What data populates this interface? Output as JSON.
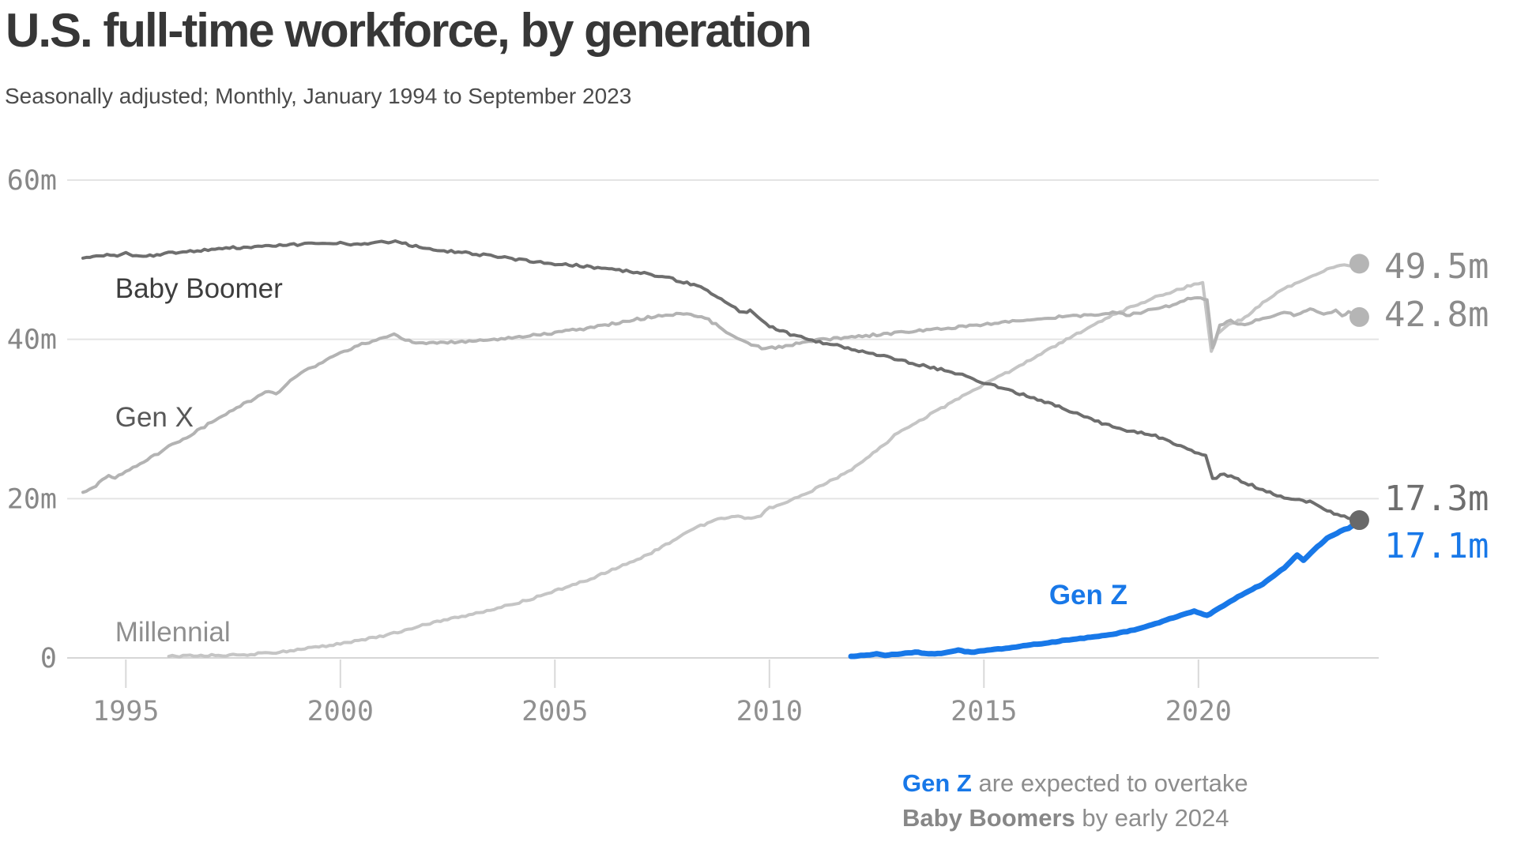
{
  "header": {
    "title": "U.S. full-time workforce, by generation",
    "subtitle": "Seasonally adjusted; Monthly, January 1994 to September 2023"
  },
  "annotation": {
    "line1_highlight": "Gen Z",
    "line1_rest": " are expected to overtake",
    "line2_bold": "Baby Boomers",
    "line2_rest": " by early 2024"
  },
  "colors": {
    "accent_blue": "#1878e8",
    "title": "#373737",
    "subtitle": "#4b4b4b",
    "annotation_gray": "#8d8d8d",
    "annotation_bold_gray": "#878787",
    "grid": "#e4e4e4",
    "baseline": "#d6d6d6",
    "tick": "#d9d9d9",
    "y_axis_label": "#878787",
    "x_axis_label": "#909090"
  },
  "chart_data": {
    "type": "line",
    "title": "U.S. full-time workforce, by generation",
    "subtitle": "Seasonally adjusted; Monthly, January 1994 to September 2023",
    "unit": "millions of full-time workers",
    "grid": true,
    "legend_position": "inline-labels",
    "x_axis": {
      "range": [
        1994,
        2023.75
      ],
      "ticks": [
        1995,
        2000,
        2005,
        2010,
        2015,
        2020
      ]
    },
    "y_axis": {
      "range": [
        0,
        60
      ],
      "ticks": [
        {
          "value": 60,
          "label": "60m"
        },
        {
          "value": 40,
          "label": "40m"
        },
        {
          "value": 20,
          "label": "20m"
        },
        {
          "value": 0,
          "label": "0"
        }
      ]
    },
    "series": [
      {
        "name": "Millennial",
        "color": "#c5c5c5",
        "line_width": 4,
        "label_color": "#8f8f8f",
        "label_bold": false,
        "label_anchor": [
          1994.75,
          2.08
        ],
        "end_label": {
          "text": "49.5m",
          "color": "#8b8b8b",
          "v": 47.7
        },
        "end_dot": {
          "show": true,
          "color": "#b5b5b5"
        },
        "points": [
          [
            1996,
            0.2
          ],
          [
            1996.5,
            0.25
          ],
          [
            1997,
            0.3
          ],
          [
            1997.5,
            0.35
          ],
          [
            1998,
            0.5
          ],
          [
            1998.5,
            0.7
          ],
          [
            1999,
            1.0
          ],
          [
            1999.5,
            1.4
          ],
          [
            2000,
            1.8
          ],
          [
            2000.5,
            2.3
          ],
          [
            2001,
            2.8
          ],
          [
            2001.5,
            3.5
          ],
          [
            2002,
            4.2
          ],
          [
            2002.5,
            4.8
          ],
          [
            2003,
            5.4
          ],
          [
            2003.5,
            6.0
          ],
          [
            2004,
            6.7
          ],
          [
            2004.5,
            7.5
          ],
          [
            2005,
            8.4
          ],
          [
            2005.5,
            9.3
          ],
          [
            2006,
            10.3
          ],
          [
            2006.5,
            11.4
          ],
          [
            2007,
            12.5
          ],
          [
            2007.5,
            13.9
          ],
          [
            2008,
            15.5
          ],
          [
            2008.4,
            16.6
          ],
          [
            2008.8,
            17.4
          ],
          [
            2009.2,
            17.8
          ],
          [
            2009.5,
            17.5
          ],
          [
            2009.8,
            17.9
          ],
          [
            2010,
            18.8
          ],
          [
            2010.5,
            19.8
          ],
          [
            2011,
            21.0
          ],
          [
            2011.5,
            22.4
          ],
          [
            2012,
            24.0
          ],
          [
            2012.5,
            26.0
          ],
          [
            2013,
            28.3
          ],
          [
            2013.5,
            29.8
          ],
          [
            2014,
            31.3
          ],
          [
            2014.5,
            32.8
          ],
          [
            2015,
            34.3
          ],
          [
            2015.5,
            35.7
          ],
          [
            2016,
            37.2
          ],
          [
            2016.5,
            38.7
          ],
          [
            2017,
            40.2
          ],
          [
            2017.5,
            41.6
          ],
          [
            2018,
            43.0
          ],
          [
            2018.5,
            44.2
          ],
          [
            2019,
            45.3
          ],
          [
            2019.5,
            46.2
          ],
          [
            2019.9,
            46.9
          ],
          [
            2020.1,
            47.1
          ],
          [
            2020.3,
            38.5
          ],
          [
            2020.45,
            40.6
          ],
          [
            2020.7,
            41.9
          ],
          [
            2021,
            42.4
          ],
          [
            2021.5,
            44.6
          ],
          [
            2022,
            46.4
          ],
          [
            2022.5,
            47.6
          ],
          [
            2023,
            48.8
          ],
          [
            2023.3,
            49.4
          ],
          [
            2023.5,
            49.2
          ],
          [
            2023.75,
            49.5
          ]
        ]
      },
      {
        "name": "Gen X",
        "color": "#b3b3b3",
        "line_width": 4,
        "label_color": "#585858",
        "label_bold": false,
        "label_anchor": [
          1994.75,
          29.06
        ],
        "end_label": {
          "text": "42.8m",
          "color": "#8b8b8b",
          "v": 41.66
        },
        "end_dot": {
          "show": true,
          "color": "#b5b5b5"
        },
        "points": [
          [
            1994,
            20.8
          ],
          [
            1994.3,
            21.6
          ],
          [
            1994.6,
            22.9
          ],
          [
            1994.75,
            22.5
          ],
          [
            1995,
            23.4
          ],
          [
            1995.5,
            24.9
          ],
          [
            1996,
            26.5
          ],
          [
            1996.5,
            28.0
          ],
          [
            1997,
            29.6
          ],
          [
            1997.5,
            31.2
          ],
          [
            1998,
            32.6
          ],
          [
            1998.25,
            33.4
          ],
          [
            1998.5,
            33.1
          ],
          [
            1999,
            35.5
          ],
          [
            1999.5,
            36.9
          ],
          [
            2000,
            38.3
          ],
          [
            2000.5,
            39.4
          ],
          [
            2001,
            40.2
          ],
          [
            2001.25,
            40.6
          ],
          [
            2001.6,
            39.8
          ],
          [
            2002,
            39.5
          ],
          [
            2002.5,
            39.6
          ],
          [
            2003,
            39.8
          ],
          [
            2003.5,
            40.0
          ],
          [
            2004,
            40.2
          ],
          [
            2004.5,
            40.5
          ],
          [
            2005,
            40.8
          ],
          [
            2005.5,
            41.2
          ],
          [
            2006,
            41.6
          ],
          [
            2006.5,
            42.1
          ],
          [
            2007,
            42.6
          ],
          [
            2007.5,
            43.0
          ],
          [
            2008,
            43.2
          ],
          [
            2008.5,
            42.7
          ],
          [
            2009,
            41.0
          ],
          [
            2009.5,
            39.5
          ],
          [
            2009.9,
            38.8
          ],
          [
            2010.3,
            39.1
          ],
          [
            2010.7,
            39.5
          ],
          [
            2011,
            39.8
          ],
          [
            2011.5,
            40.1
          ],
          [
            2012,
            40.3
          ],
          [
            2012.5,
            40.6
          ],
          [
            2013,
            40.8
          ],
          [
            2013.5,
            41.1
          ],
          [
            2014,
            41.3
          ],
          [
            2014.5,
            41.6
          ],
          [
            2015,
            41.9
          ],
          [
            2015.5,
            42.2
          ],
          [
            2016,
            42.4
          ],
          [
            2016.5,
            42.7
          ],
          [
            2017,
            42.9
          ],
          [
            2017.5,
            43.1
          ],
          [
            2018,
            43.3
          ],
          [
            2018.4,
            43.1
          ],
          [
            2019,
            43.8
          ],
          [
            2019.4,
            44.3
          ],
          [
            2019.75,
            45.0
          ],
          [
            2020.05,
            45.3
          ],
          [
            2020.2,
            44.9
          ],
          [
            2020.33,
            38.9
          ],
          [
            2020.5,
            41.7
          ],
          [
            2020.75,
            42.3
          ],
          [
            2021,
            41.8
          ],
          [
            2021.5,
            42.6
          ],
          [
            2022,
            43.3
          ],
          [
            2022.3,
            43.0
          ],
          [
            2022.6,
            43.7
          ],
          [
            2023,
            43.2
          ],
          [
            2023.2,
            43.6
          ],
          [
            2023.35,
            42.9
          ],
          [
            2023.5,
            43.4
          ],
          [
            2023.75,
            42.8
          ]
        ]
      },
      {
        "name": "Baby Boomer",
        "color": "#6e6e6e",
        "line_width": 4,
        "label_color": "#3d3d3d",
        "label_bold": false,
        "label_anchor": [
          1994.75,
          45.2
        ],
        "end_label": {
          "text": "17.3m",
          "color": "#6e6e6e",
          "v": 18.55
        },
        "end_dot": {
          "show": true,
          "color": "#696969"
        },
        "points": [
          [
            1994,
            50.2
          ],
          [
            1994.4,
            50.6
          ],
          [
            1994.8,
            50.4
          ],
          [
            1995,
            50.8
          ],
          [
            1995.4,
            50.3
          ],
          [
            1995.8,
            50.7
          ],
          [
            1996,
            50.9
          ],
          [
            1996.5,
            51.0
          ],
          [
            1997,
            51.3
          ],
          [
            1997.5,
            51.5
          ],
          [
            1998,
            51.6
          ],
          [
            1998.5,
            51.8
          ],
          [
            1999,
            51.9
          ],
          [
            1999.5,
            52.0
          ],
          [
            2000,
            52.1
          ],
          [
            2000.4,
            51.9
          ],
          [
            2000.8,
            52.1
          ],
          [
            2001.2,
            52.3
          ],
          [
            2001.6,
            51.9
          ],
          [
            2002,
            51.4
          ],
          [
            2002.5,
            51.1
          ],
          [
            2003,
            50.8
          ],
          [
            2003.5,
            50.5
          ],
          [
            2004,
            50.1
          ],
          [
            2004.5,
            49.8
          ],
          [
            2005,
            49.5
          ],
          [
            2005.5,
            49.3
          ],
          [
            2006,
            49.0
          ],
          [
            2006.5,
            48.7
          ],
          [
            2007,
            48.4
          ],
          [
            2007.5,
            47.9
          ],
          [
            2008,
            47.2
          ],
          [
            2008.4,
            46.6
          ],
          [
            2008.8,
            45.4
          ],
          [
            2009.2,
            43.9
          ],
          [
            2009.4,
            43.3
          ],
          [
            2009.55,
            43.6
          ],
          [
            2010,
            41.7
          ],
          [
            2010.4,
            40.8
          ],
          [
            2011,
            39.8
          ],
          [
            2011.5,
            39.3
          ],
          [
            2012,
            38.7
          ],
          [
            2012.5,
            38.1
          ],
          [
            2013,
            37.4
          ],
          [
            2013.5,
            36.8
          ],
          [
            2014,
            36.2
          ],
          [
            2014.5,
            35.5
          ],
          [
            2015,
            34.6
          ],
          [
            2015.5,
            33.8
          ],
          [
            2016,
            32.9
          ],
          [
            2016.5,
            32.0
          ],
          [
            2017,
            31.0
          ],
          [
            2017.5,
            30.0
          ],
          [
            2018,
            29.0
          ],
          [
            2018.5,
            28.4
          ],
          [
            2019,
            27.9
          ],
          [
            2019.5,
            26.8
          ],
          [
            2020,
            25.7
          ],
          [
            2020.17,
            25.3
          ],
          [
            2020.33,
            22.5
          ],
          [
            2020.6,
            23.1
          ],
          [
            2021,
            22.2
          ],
          [
            2021.5,
            21.1
          ],
          [
            2022,
            20.1
          ],
          [
            2022.6,
            19.6
          ],
          [
            2023,
            18.4
          ],
          [
            2023.4,
            17.8
          ],
          [
            2023.75,
            17.3
          ]
        ]
      },
      {
        "name": "Gen Z",
        "color": "#1878e8",
        "line_width": 7,
        "label_color": "#1878e8",
        "label_bold": true,
        "label_anchor": [
          2016.52,
          6.74
        ],
        "end_label": {
          "text": "17.1m",
          "color": "#1878e8",
          "v": 12.6
        },
        "end_dot": {
          "show": false,
          "color": "#1878e8"
        },
        "points": [
          [
            2011.9,
            0.2
          ],
          [
            2012.2,
            0.3
          ],
          [
            2012.5,
            0.55
          ],
          [
            2012.7,
            0.35
          ],
          [
            2013,
            0.45
          ],
          [
            2013.4,
            0.75
          ],
          [
            2013.7,
            0.5
          ],
          [
            2014,
            0.6
          ],
          [
            2014.4,
            0.95
          ],
          [
            2014.7,
            0.7
          ],
          [
            2015,
            0.9
          ],
          [
            2015.5,
            1.2
          ],
          [
            2016,
            1.6
          ],
          [
            2016.5,
            1.9
          ],
          [
            2017,
            2.3
          ],
          [
            2017.5,
            2.6
          ],
          [
            2018,
            3.0
          ],
          [
            2018.5,
            3.5
          ],
          [
            2019,
            4.3
          ],
          [
            2019.5,
            5.2
          ],
          [
            2019.9,
            5.9
          ],
          [
            2020.2,
            5.3
          ],
          [
            2020.5,
            6.3
          ],
          [
            2021,
            7.9
          ],
          [
            2021.5,
            9.3
          ],
          [
            2022,
            11.3
          ],
          [
            2022.3,
            12.9
          ],
          [
            2022.45,
            12.3
          ],
          [
            2022.7,
            13.6
          ],
          [
            2023,
            15.0
          ],
          [
            2023.3,
            15.9
          ],
          [
            2023.5,
            16.3
          ],
          [
            2023.75,
            17.1
          ]
        ]
      }
    ]
  }
}
